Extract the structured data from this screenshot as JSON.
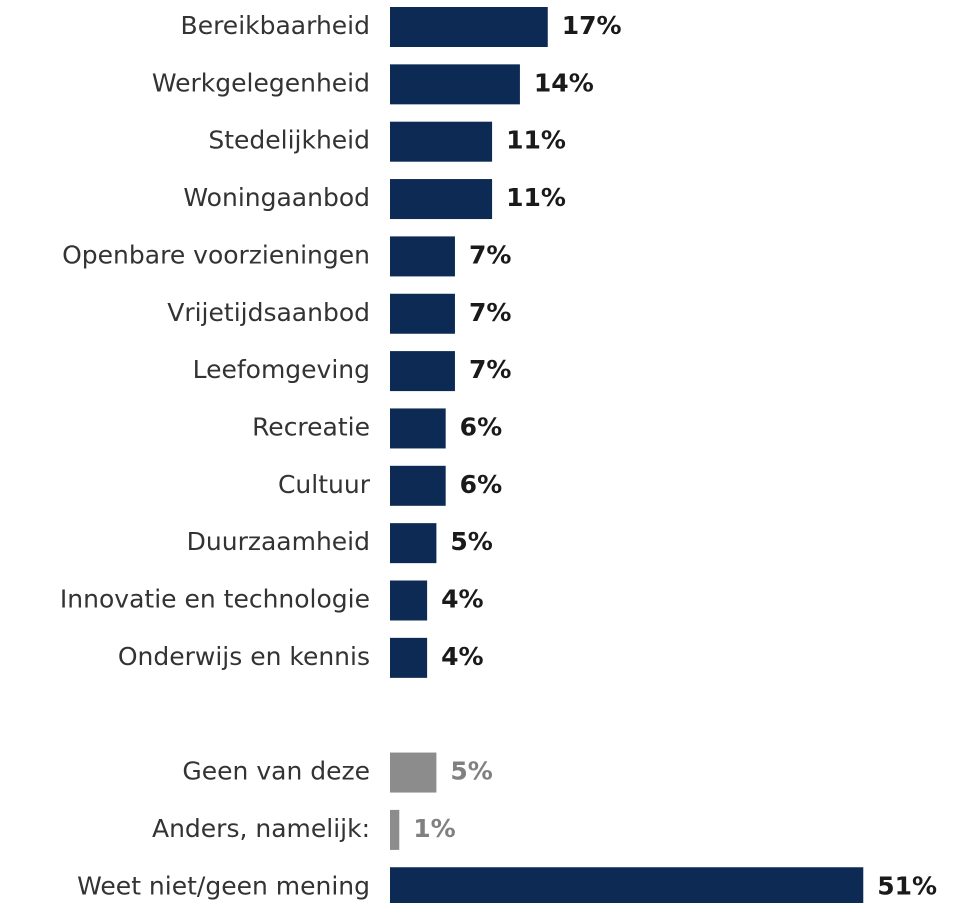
{
  "chart_data": {
    "type": "hbar",
    "categories": [
      "Bereikbaarheid",
      "Werkgelegenheid",
      "Stedelijkheid",
      "Woningaanbod",
      "Openbare voorzieningen",
      "Vrijetijdsaanbod",
      "Leefomgeving",
      "Recreatie",
      "Cultuur",
      "Duurzaamheid",
      "Innovatie en technologie",
      "Onderwijs en kennis",
      null,
      "Geen van deze",
      "Anders, namelijk:",
      "Weet niet/geen mening"
    ],
    "values": [
      17,
      14,
      11,
      11,
      7,
      7,
      7,
      6,
      6,
      5,
      4,
      4,
      null,
      5,
      1,
      51
    ],
    "value_labels": [
      "17%",
      "14%",
      "11%",
      "11%",
      "7%",
      "7%",
      "7%",
      "6%",
      "6%",
      "5%",
      "4%",
      "4%",
      null,
      "5%",
      "1%",
      "51%"
    ],
    "colors": [
      "#0c2a53",
      "#0c2a53",
      "#0c2a53",
      "#0c2a53",
      "#0c2a53",
      "#0c2a53",
      "#0c2a53",
      "#0c2a53",
      "#0c2a53",
      "#0c2a53",
      "#0c2a53",
      "#0c2a53",
      null,
      "#8c8c8c",
      "#8c8c8c",
      "#0c2a53"
    ],
    "label_colors": [
      "#1a1a1a",
      "#1a1a1a",
      "#1a1a1a",
      "#1a1a1a",
      "#1a1a1a",
      "#1a1a1a",
      "#1a1a1a",
      "#1a1a1a",
      "#1a1a1a",
      "#1a1a1a",
      "#1a1a1a",
      "#1a1a1a",
      null,
      "#808080",
      "#808080",
      "#1a1a1a"
    ]
  }
}
